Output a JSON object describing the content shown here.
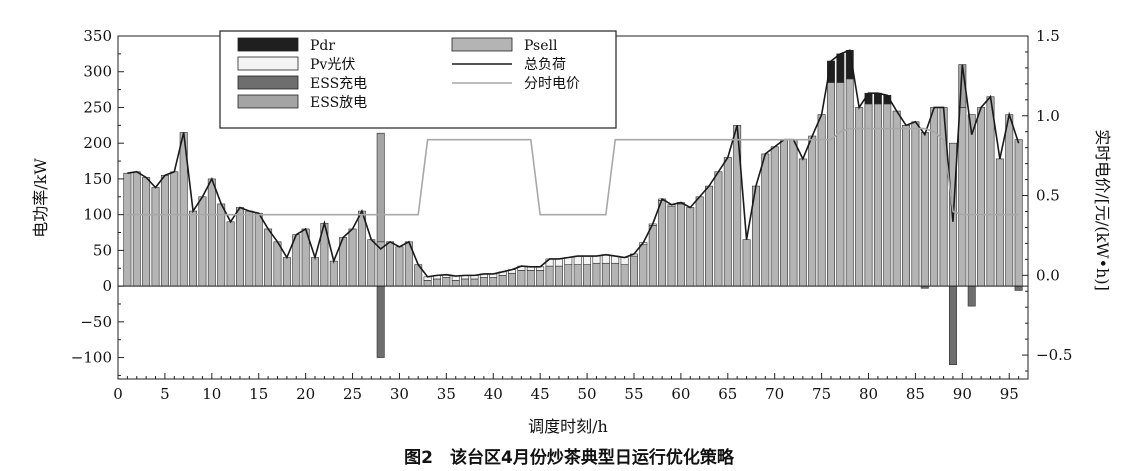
{
  "caption": "图2　该台区4月份炒茶典型日运行优化策略",
  "chart_data": {
    "type": "bar",
    "xlabel": "调度时刻/h",
    "ylabel_left": "电功率/kW",
    "ylabel_right": "实时电价/[元/(kW•h)]",
    "xlim": [
      0,
      97
    ],
    "ylim_left": [
      -130,
      350
    ],
    "ylim_right": [
      -0.65,
      1.5
    ],
    "x_ticks": [
      0,
      5,
      10,
      15,
      20,
      25,
      30,
      35,
      40,
      45,
      50,
      55,
      60,
      65,
      70,
      75,
      80,
      85,
      90,
      95
    ],
    "y_ticks_left": [
      -100,
      -50,
      0,
      50,
      100,
      150,
      200,
      250,
      300,
      350
    ],
    "y_ticks_right": [
      -0.5,
      0.0,
      0.5,
      1.0,
      1.5
    ],
    "y_tick_labels_right": [
      "−0.5",
      "0.0",
      "0.5",
      "1.0",
      "1.5"
    ],
    "legend": {
      "placement": "top-left",
      "entries": [
        {
          "label": "Pdr",
          "kind": "bar",
          "color": "#1f1f1f"
        },
        {
          "label": "Pv光伏",
          "kind": "bar",
          "color": "#f4f4f4"
        },
        {
          "label": "ESS充电",
          "kind": "bar",
          "color": "#6e6e6e"
        },
        {
          "label": "ESS放电",
          "kind": "bar",
          "color": "#a4a4a4"
        },
        {
          "label": "Psell",
          "kind": "bar",
          "color": "#b4b4b4"
        },
        {
          "label": "总负荷",
          "kind": "line",
          "color": "#1a1a1a"
        },
        {
          "label": "分时电价",
          "kind": "line",
          "color": "#a8a8a8"
        }
      ]
    },
    "x": [
      1,
      2,
      3,
      4,
      5,
      6,
      7,
      8,
      9,
      10,
      11,
      12,
      13,
      14,
      15,
      16,
      17,
      18,
      19,
      20,
      21,
      22,
      23,
      24,
      25,
      26,
      27,
      28,
      29,
      30,
      31,
      32,
      33,
      34,
      35,
      36,
      37,
      38,
      39,
      40,
      41,
      42,
      43,
      44,
      45,
      46,
      47,
      48,
      49,
      50,
      51,
      52,
      53,
      54,
      55,
      56,
      57,
      58,
      59,
      60,
      61,
      62,
      63,
      64,
      65,
      66,
      67,
      68,
      69,
      70,
      71,
      72,
      73,
      74,
      75,
      76,
      77,
      78,
      79,
      80,
      81,
      82,
      83,
      84,
      85,
      86,
      87,
      88,
      89,
      90,
      91,
      92,
      93,
      94,
      95,
      96
    ],
    "series": [
      {
        "name": "Psell",
        "values": [
          158,
          160,
          152,
          138,
          155,
          160,
          215,
          105,
          125,
          150,
          115,
          90,
          110,
          105,
          102,
          80,
          62,
          40,
          72,
          80,
          40,
          88,
          35,
          68,
          80,
          105,
          65,
          62,
          62,
          55,
          62,
          30,
          8,
          10,
          12,
          8,
          10,
          10,
          12,
          12,
          15,
          18,
          22,
          22,
          22,
          28,
          28,
          30,
          30,
          30,
          32,
          32,
          32,
          30,
          42,
          58,
          85,
          120,
          112,
          115,
          110,
          125,
          140,
          160,
          180,
          225,
          65,
          140,
          185,
          195,
          205,
          205,
          178,
          210,
          240,
          285,
          285,
          290,
          250,
          255,
          255,
          255,
          245,
          225,
          230,
          215,
          250,
          250,
          200,
          250,
          240,
          250,
          265,
          178,
          240,
          205
        ]
      },
      {
        "name": "Pv光伏",
        "values": [
          0,
          0,
          0,
          0,
          0,
          0,
          0,
          0,
          0,
          0,
          0,
          0,
          0,
          0,
          0,
          0,
          0,
          0,
          0,
          0,
          0,
          0,
          0,
          0,
          0,
          0,
          0,
          0,
          0,
          0,
          0,
          0,
          5,
          5,
          4,
          6,
          5,
          5,
          5,
          5,
          5,
          5,
          6,
          5,
          5,
          10,
          10,
          10,
          12,
          12,
          10,
          12,
          10,
          10,
          3,
          3,
          2,
          2,
          2,
          2,
          0,
          0,
          0,
          0,
          0,
          0,
          0,
          0,
          0,
          0,
          0,
          0,
          0,
          0,
          0,
          0,
          0,
          0,
          0,
          0,
          0,
          0,
          0,
          0,
          0,
          0,
          0,
          0,
          0,
          0,
          0,
          0,
          0,
          0,
          0,
          0
        ]
      },
      {
        "name": "ESS放电",
        "values": [
          0,
          0,
          0,
          0,
          0,
          0,
          0,
          0,
          0,
          0,
          0,
          0,
          0,
          0,
          0,
          0,
          0,
          0,
          0,
          0,
          0,
          0,
          0,
          0,
          0,
          0,
          0,
          152,
          0,
          0,
          0,
          0,
          0,
          0,
          0,
          0,
          0,
          0,
          0,
          0,
          0,
          0,
          0,
          0,
          0,
          0,
          0,
          0,
          0,
          0,
          0,
          0,
          0,
          0,
          0,
          0,
          0,
          0,
          0,
          0,
          0,
          0,
          0,
          0,
          0,
          0,
          0,
          0,
          0,
          0,
          0,
          0,
          0,
          0,
          0,
          0,
          0,
          0,
          0,
          0,
          0,
          0,
          0,
          0,
          0,
          0,
          0,
          0,
          0,
          60,
          0,
          0,
          0,
          0,
          0,
          0
        ]
      },
      {
        "name": "Pdr",
        "values": [
          0,
          0,
          0,
          0,
          0,
          0,
          0,
          0,
          0,
          0,
          0,
          0,
          0,
          0,
          0,
          0,
          0,
          0,
          0,
          0,
          0,
          0,
          0,
          0,
          0,
          0,
          0,
          0,
          0,
          0,
          0,
          0,
          0,
          0,
          0,
          0,
          0,
          0,
          0,
          0,
          0,
          0,
          0,
          0,
          0,
          0,
          0,
          0,
          0,
          0,
          0,
          0,
          0,
          0,
          0,
          0,
          0,
          0,
          0,
          0,
          0,
          0,
          0,
          0,
          0,
          0,
          0,
          0,
          0,
          0,
          0,
          0,
          0,
          0,
          0,
          30,
          40,
          40,
          0,
          15,
          15,
          12,
          0,
          0,
          0,
          0,
          0,
          0,
          0,
          0,
          0,
          0,
          0,
          0,
          0,
          0
        ]
      },
      {
        "name": "ESS充电",
        "values": [
          0,
          0,
          0,
          0,
          0,
          0,
          0,
          0,
          0,
          0,
          0,
          0,
          0,
          0,
          0,
          0,
          0,
          0,
          0,
          0,
          0,
          0,
          0,
          0,
          0,
          0,
          0,
          -100,
          0,
          0,
          0,
          0,
          0,
          0,
          0,
          0,
          0,
          0,
          0,
          0,
          0,
          0,
          0,
          0,
          0,
          0,
          0,
          0,
          0,
          0,
          0,
          0,
          0,
          0,
          0,
          0,
          0,
          0,
          0,
          0,
          0,
          0,
          0,
          0,
          0,
          0,
          0,
          0,
          0,
          0,
          0,
          0,
          0,
          0,
          0,
          0,
          0,
          0,
          0,
          0,
          0,
          0,
          0,
          0,
          0,
          -3,
          0,
          0,
          -110,
          0,
          -28,
          0,
          0,
          0,
          0,
          -6
        ]
      },
      {
        "name": "总负荷",
        "values": [
          158,
          160,
          152,
          138,
          155,
          160,
          215,
          105,
          125,
          150,
          115,
          90,
          110,
          105,
          102,
          80,
          62,
          40,
          72,
          80,
          40,
          88,
          35,
          68,
          80,
          105,
          65,
          52,
          62,
          55,
          62,
          30,
          13,
          15,
          16,
          14,
          15,
          15,
          17,
          17,
          20,
          23,
          28,
          27,
          27,
          38,
          38,
          40,
          42,
          42,
          42,
          44,
          42,
          40,
          45,
          61,
          87,
          122,
          114,
          117,
          110,
          125,
          140,
          160,
          180,
          225,
          65,
          140,
          185,
          195,
          205,
          205,
          178,
          210,
          240,
          315,
          325,
          330,
          250,
          270,
          270,
          267,
          245,
          225,
          230,
          212,
          250,
          250,
          90,
          310,
          212,
          250,
          265,
          178,
          240,
          200
        ]
      },
      {
        "name": "分时电价",
        "values": [
          0.38,
          0.38,
          0.38,
          0.38,
          0.38,
          0.38,
          0.38,
          0.38,
          0.38,
          0.38,
          0.38,
          0.38,
          0.38,
          0.38,
          0.38,
          0.38,
          0.38,
          0.38,
          0.38,
          0.38,
          0.38,
          0.38,
          0.38,
          0.38,
          0.38,
          0.38,
          0.38,
          0.38,
          0.38,
          0.38,
          0.38,
          0.38,
          0.85,
          0.85,
          0.85,
          0.85,
          0.85,
          0.85,
          0.85,
          0.85,
          0.85,
          0.85,
          0.85,
          0.85,
          0.38,
          0.38,
          0.38,
          0.38,
          0.38,
          0.38,
          0.38,
          0.38,
          0.85,
          0.85,
          0.85,
          0.85,
          0.85,
          0.85,
          0.85,
          0.85,
          0.85,
          0.85,
          0.85,
          0.85,
          0.85,
          0.85,
          0.85,
          0.85,
          0.85,
          0.85,
          0.85,
          0.85,
          0.85,
          0.85,
          0.85,
          0.85,
          0.9,
          0.92,
          0.92,
          0.92,
          0.92,
          0.92,
          0.92,
          0.92,
          0.92,
          0.92,
          0.9,
          0.85,
          0.4,
          0.38,
          0.38,
          0.38,
          0.38,
          0.38,
          0.38,
          0.38
        ]
      }
    ]
  }
}
